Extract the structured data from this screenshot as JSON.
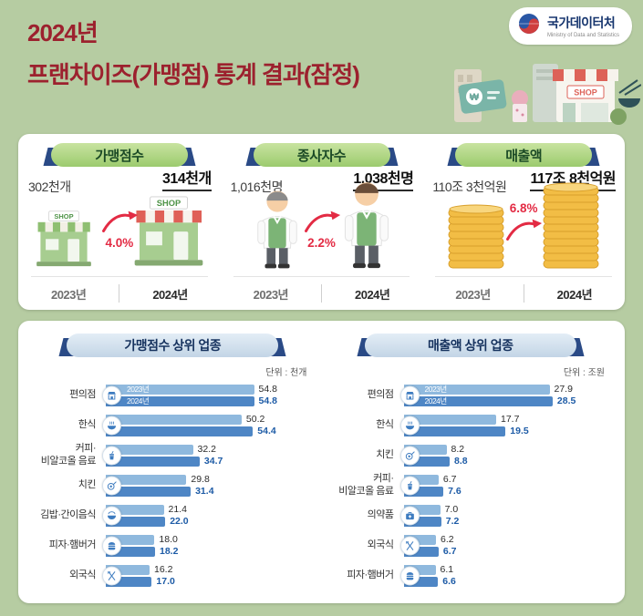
{
  "header": {
    "title_line1": "2024년",
    "title_line2": "프랜차이즈(가맹점) 통계 결과(잠정)",
    "logo": {
      "name": "국가데이터처",
      "subtitle": "Ministry of Data and Statistics"
    },
    "illustration": {
      "won_symbol": "₩",
      "shop_sign": "SHOP"
    }
  },
  "summary": {
    "cards": [
      {
        "title": "가맹점수",
        "prev_value": "302천개",
        "curr_value": "314천개",
        "growth": "4.0%",
        "prev_year": "2023년",
        "curr_year": "2024년",
        "icon": "storefront-icon",
        "sign_text": "SHOP"
      },
      {
        "title": "종사자수",
        "prev_value": "1,016천명",
        "curr_value": "1,038천명",
        "growth": "2.2%",
        "prev_year": "2023년",
        "curr_year": "2024년",
        "icon": "worker-icon"
      },
      {
        "title": "매출액",
        "prev_value": "110조 3천억원",
        "curr_value": "117조 8천억원",
        "growth": "6.8%",
        "prev_year": "2023년",
        "curr_year": "2024년",
        "icon": "coin-stack-icon"
      }
    ]
  },
  "chart_data": [
    {
      "type": "bar",
      "title": "가맹점수 상위 업종",
      "unit_label": "단위 : 천개",
      "legend": [
        "2023년",
        "2024년"
      ],
      "legend_position": "inside-first-bars",
      "grid": false,
      "categories": [
        "편의점",
        "한식",
        "커피·\n비알코올 음료",
        "치킨",
        "김밥·간이음식",
        "피자·햄버거",
        "외국식"
      ],
      "icons": [
        "shop-icon",
        "noodle-bowl-icon",
        "drink-cup-icon",
        "chicken-icon",
        "rice-bowl-icon",
        "burger-icon",
        "cutlery-icon"
      ],
      "series": [
        {
          "name": "2023년",
          "values": [
            54.8,
            50.2,
            32.2,
            29.8,
            21.4,
            18.0,
            16.2
          ]
        },
        {
          "name": "2024년",
          "values": [
            54.8,
            54.4,
            34.7,
            31.4,
            22.0,
            18.2,
            17.0
          ]
        }
      ],
      "xmax": 58
    },
    {
      "type": "bar",
      "title": "매출액 상위 업종",
      "unit_label": "단위 : 조원",
      "legend": [
        "2023년",
        "2024년"
      ],
      "legend_position": "inside-first-bars",
      "grid": false,
      "categories": [
        "편의점",
        "한식",
        "치킨",
        "커피·\n비알코올 음료",
        "의약품",
        "외국식",
        "피자·햄버거"
      ],
      "icons": [
        "shop-icon",
        "noodle-bowl-icon",
        "chicken-icon",
        "drink-cup-icon",
        "medicine-icon",
        "cutlery-icon",
        "burger-icon"
      ],
      "series": [
        {
          "name": "2023년",
          "values": [
            27.9,
            17.7,
            8.2,
            6.7,
            7.0,
            6.2,
            6.1
          ]
        },
        {
          "name": "2024년",
          "values": [
            28.5,
            19.5,
            8.8,
            7.6,
            7.2,
            6.7,
            6.6
          ]
        }
      ],
      "xmax": 30
    }
  ],
  "colors": {
    "background": "#b6cca2",
    "title_red": "#9c212e",
    "bar_2023": "#8fb9de",
    "bar_2024": "#4e86c5",
    "value_2024_text": "#1d5ba6",
    "growth_red": "#e32b44",
    "ribbon_green": "#a9d37e",
    "ribbon_blue": "#ccdbe9",
    "ribbon_cap_navy": "#2a4a86"
  }
}
